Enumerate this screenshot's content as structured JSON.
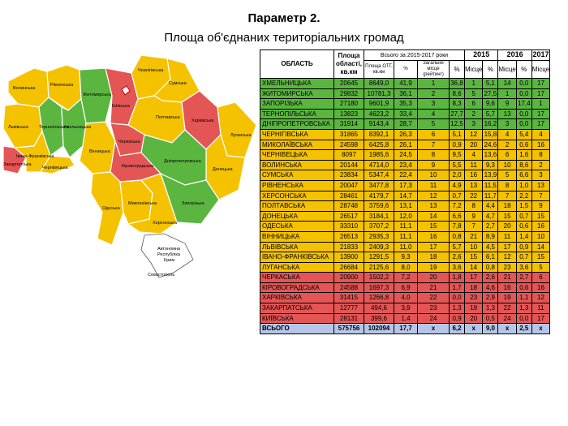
{
  "title": "Параметр 2.",
  "subtitle": "Площа об'єднаних територіальних громад",
  "colors": {
    "green": "#5bb640",
    "yellow": "#f5c200",
    "red": "#e45555",
    "total": "#b5c7e8"
  },
  "headers": {
    "oblast": "ОБЛАСТЬ",
    "area": "Площа області, кв.км",
    "total_period": "Всього за 2015-2017 роки",
    "area_otg": "Площа ОТГ, кв.км",
    "pct": "%",
    "overall_place": "Загальне місце (рейтинг)",
    "y2015": "2015",
    "y2016": "2016",
    "y2017": "2017",
    "place": "Місце"
  },
  "rows": [
    {
      "c": "g",
      "name": "ХМЕЛЬНИЦЬКА",
      "area": "20645",
      "otg": "8649,0",
      "pct": "41,9",
      "rank": "1",
      "p15": "36,8",
      "m15": "1",
      "p16": "5,1",
      "m16": "14",
      "p17": "0,0",
      "m17": "17"
    },
    {
      "c": "g",
      "name": "ЖИТОМИРСЬКА",
      "area": "29832",
      "otg": "10781,3",
      "pct": "36,1",
      "rank": "2",
      "p15": "8,6",
      "m15": "5",
      "p16": "27,5",
      "m16": "1",
      "p17": "0,0",
      "m17": "17"
    },
    {
      "c": "g",
      "name": "ЗАПОРІЗЬКА",
      "area": "27180",
      "otg": "9601,9",
      "pct": "35,3",
      "rank": "3",
      "p15": "8,3",
      "m15": "6",
      "p16": "9,6",
      "m16": "9",
      "p17": "17,4",
      "m17": "1"
    },
    {
      "c": "g",
      "name": "ТЕРНОПІЛЬСЬКА",
      "area": "13823",
      "otg": "4623,2",
      "pct": "33,4",
      "rank": "4",
      "p15": "27,7",
      "m15": "2",
      "p16": "5,7",
      "m16": "13",
      "p17": "0,0",
      "m17": "17"
    },
    {
      "c": "g",
      "name": "ДНІПРОПЕТРОВСЬКА",
      "area": "31914",
      "otg": "9143,4",
      "pct": "28,7",
      "rank": "5",
      "p15": "12,5",
      "m15": "3",
      "p16": "16,2",
      "m16": "3",
      "p17": "0,0",
      "m17": "17"
    },
    {
      "c": "y",
      "name": "ЧЕРНІГІВСЬКА",
      "area": "31865",
      "otg": "8392,1",
      "pct": "26,3",
      "rank": "6",
      "p15": "5,1",
      "m15": "12",
      "p16": "15,8",
      "m16": "4",
      "p17": "5,4",
      "m17": "4"
    },
    {
      "c": "y",
      "name": "МИКОЛАЇВСЬКА",
      "area": "24598",
      "otg": "6425,8",
      "pct": "26,1",
      "rank": "7",
      "p15": "0,9",
      "m15": "20",
      "p16": "24,6",
      "m16": "2",
      "p17": "0,6",
      "m17": "16"
    },
    {
      "c": "y",
      "name": "ЧЕРНІВЕЦЬКА",
      "area": "8097",
      "otg": "1985,6",
      "pct": "24,5",
      "rank": "8",
      "p15": "9,5",
      "m15": "4",
      "p16": "13,6",
      "m16": "6",
      "p17": "1,6",
      "m17": "8"
    },
    {
      "c": "y",
      "name": "ВОЛИНСЬКА",
      "area": "20144",
      "otg": "4714,0",
      "pct": "23,4",
      "rank": "9",
      "p15": "5,5",
      "m15": "11",
      "p16": "9,3",
      "m16": "10",
      "p17": "8,6",
      "m17": "2"
    },
    {
      "c": "y",
      "name": "СУМСЬКА",
      "area": "23834",
      "otg": "5347,4",
      "pct": "22,4",
      "rank": "10",
      "p15": "2,0",
      "m15": "16",
      "p16": "13,9",
      "m16": "5",
      "p17": "6,6",
      "m17": "3"
    },
    {
      "c": "y",
      "name": "РІВНЕНСЬКА",
      "area": "20047",
      "otg": "3477,8",
      "pct": "17,3",
      "rank": "11",
      "p15": "4,9",
      "m15": "13",
      "p16": "11,5",
      "m16": "8",
      "p17": "1,0",
      "m17": "13"
    },
    {
      "c": "y",
      "name": "ХЕРСОНСЬКА",
      "area": "28461",
      "otg": "4179,7",
      "pct": "14,7",
      "rank": "12",
      "p15": "0,7",
      "m15": "22",
      "p16": "11,7",
      "m16": "7",
      "p17": "2,2",
      "m17": "7"
    },
    {
      "c": "y",
      "name": "ПОЛТАВСЬКА",
      "area": "28748",
      "otg": "3759,6",
      "pct": "13,1",
      "rank": "13",
      "p15": "7,2",
      "m15": "8",
      "p16": "4,4",
      "m16": "18",
      "p17": "1,5",
      "m17": "9"
    },
    {
      "c": "y",
      "name": "ДОНЕЦЬКА",
      "area": "26517",
      "otg": "3184,1",
      "pct": "12,0",
      "rank": "14",
      "p15": "6,6",
      "m15": "9",
      "p16": "4,7",
      "m16": "15",
      "p17": "0,7",
      "m17": "15"
    },
    {
      "c": "y",
      "name": "ОДЕСЬКА",
      "area": "33310",
      "otg": "3707,2",
      "pct": "11,1",
      "rank": "15",
      "p15": "7,8",
      "m15": "7",
      "p16": "2,7",
      "m16": "20",
      "p17": "0,6",
      "m17": "16"
    },
    {
      "c": "y",
      "name": "ВІННИЦЬКА",
      "area": "26513",
      "otg": "2935,3",
      "pct": "11,1",
      "rank": "16",
      "p15": "0,8",
      "m15": "21",
      "p16": "8,9",
      "m16": "11",
      "p17": "1,4",
      "m17": "10"
    },
    {
      "c": "y",
      "name": "ЛЬВІВСЬКА",
      "area": "21833",
      "otg": "2409,3",
      "pct": "11,0",
      "rank": "17",
      "p15": "5,7",
      "m15": "10",
      "p16": "4,5",
      "m16": "17",
      "p17": "0,9",
      "m17": "14"
    },
    {
      "c": "y",
      "name": "ІВАНО-ФРАНКІВСЬКА",
      "area": "13900",
      "otg": "1291,5",
      "pct": "9,3",
      "rank": "18",
      "p15": "2,6",
      "m15": "15",
      "p16": "6,1",
      "m16": "12",
      "p17": "0,7",
      "m17": "15"
    },
    {
      "c": "y",
      "name": "ЛУГАНСЬКА",
      "area": "26684",
      "otg": "2125,6",
      "pct": "8,0",
      "rank": "19",
      "p15": "3,6",
      "m15": "14",
      "p16": "0,8",
      "m16": "23",
      "p17": "3,6",
      "m17": "5"
    },
    {
      "c": "r",
      "name": "ЧЕРКАСЬКА",
      "area": "20900",
      "otg": "1502,2",
      "pct": "7,2",
      "rank": "20",
      "p15": "1,8",
      "m15": "17",
      "p16": "2,6",
      "m16": "21",
      "p17": "2,7",
      "m17": "6"
    },
    {
      "c": "r",
      "name": "КІРОВОГРАДСЬКА",
      "area": "24588",
      "otg": "1697,3",
      "pct": "6,9",
      "rank": "21",
      "p15": "1,7",
      "m15": "18",
      "p16": "4,6",
      "m16": "16",
      "p17": "0,6",
      "m17": "16"
    },
    {
      "c": "r",
      "name": "ХАРКІВСЬКА",
      "area": "31415",
      "otg": "1266,8",
      "pct": "4,0",
      "rank": "22",
      "p15": "0,0",
      "m15": "23",
      "p16": "2,9",
      "m16": "19",
      "p17": "1,1",
      "m17": "12"
    },
    {
      "c": "r",
      "name": "ЗАКАРПАТСЬКА",
      "area": "12777",
      "otg": "494,6",
      "pct": "3,9",
      "rank": "23",
      "p15": "1,3",
      "m15": "19",
      "p16": "1,3",
      "m16": "22",
      "p17": "1,3",
      "m17": "11"
    },
    {
      "c": "r",
      "name": "КИЇВСЬКА",
      "area": "28131",
      "otg": "399,6",
      "pct": "1,4",
      "rank": "24",
      "p15": "0,9",
      "m15": "20",
      "p16": "0,5",
      "m16": "24",
      "p17": "0,0",
      "m17": "17"
    }
  ],
  "total": {
    "name": "ВСЬОГО",
    "area": "575756",
    "otg": "102094",
    "pct": "17,7",
    "rank": "x",
    "p15": "6,2",
    "m15": "x",
    "p16": "9,0",
    "m16": "x",
    "p17": "2,5",
    "m17": "x"
  },
  "map_labels": {
    "volynska": "Волинська",
    "rivnenska": "Рівненська",
    "chernihivska": "Чернігівська",
    "zhytomyrska": "Житомирська",
    "kyivska": "Київська",
    "sumska": "Сумська",
    "lvivska": "Львівська",
    "ternopilska": "Тернопільська",
    "khmelnytska": "Хмельницька",
    "poltavska": "Полтавська",
    "kharkivska": "Харківська",
    "cherkaska": "Черкаська",
    "vinnytska": "Вінницька",
    "ivano": "Івано-Франківська",
    "zakarpatska": "Закарпатська",
    "chernivetska": "Чернівецька",
    "luhanska": "Луганська",
    "kirovohradska": "Кіровоградська",
    "dnipro": "Дніпропетровська",
    "donetska": "Донецька",
    "odeska": "Одеська",
    "mykolaivska": "Миколаївська",
    "zaporizka": "Запорізька",
    "khersonska": "Херсонська",
    "crimea1": "Автономна",
    "crimea2": "Республіка",
    "crimea3": "Крим",
    "sevastopol": "Севастополь"
  }
}
